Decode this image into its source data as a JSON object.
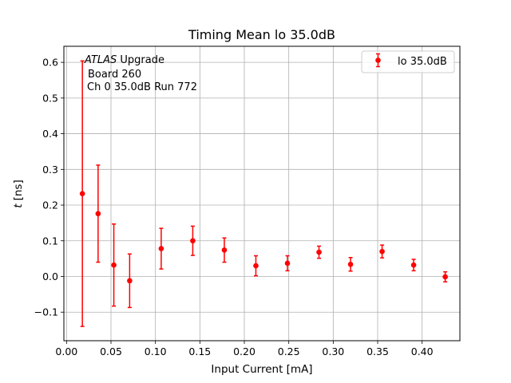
{
  "chart_data": {
    "type": "scatter",
    "title": "Timing Mean lo 35.0dB",
    "xlabel": "Input Current [mA]",
    "ylabel_italic": "t",
    "ylabel_unit": "[ns]",
    "xlim": [
      -0.003,
      0.4425
    ],
    "ylim": [
      -0.18,
      0.645
    ],
    "xticks": [
      0.0,
      0.05,
      0.1,
      0.15,
      0.2,
      0.25,
      0.3,
      0.35,
      0.4
    ],
    "xtick_labels": [
      "0.00",
      "0.05",
      "0.10",
      "0.15",
      "0.20",
      "0.25",
      "0.30",
      "0.35",
      "0.40"
    ],
    "yticks": [
      -0.1,
      0.0,
      0.1,
      0.2,
      0.3,
      0.4,
      0.5,
      0.6
    ],
    "ytick_labels": [
      "−0.1",
      "0.0",
      "0.1",
      "0.2",
      "0.3",
      "0.4",
      "0.5",
      "0.6"
    ],
    "grid": true,
    "legend_position": "top-right",
    "annotation": {
      "line1_italic": "ATLAS",
      "line1_rest": " Upgrade",
      "line2": "Board 260",
      "line3": "Ch 0 35.0dB  Run 772"
    },
    "series": [
      {
        "name": "lo 35.0dB",
        "color": "#ff0000",
        "x": [
          0.0178,
          0.0355,
          0.0532,
          0.071,
          0.1065,
          0.142,
          0.1775,
          0.213,
          0.2485,
          0.284,
          0.3195,
          0.355,
          0.3905,
          0.426
        ],
        "y": [
          0.232,
          0.176,
          0.032,
          -0.012,
          0.078,
          0.1,
          0.074,
          0.03,
          0.037,
          0.068,
          0.034,
          0.07,
          0.032,
          -0.001
        ],
        "yerr": [
          0.372,
          0.136,
          0.115,
          0.075,
          0.057,
          0.041,
          0.034,
          0.028,
          0.021,
          0.017,
          0.019,
          0.018,
          0.016,
          0.014
        ]
      }
    ]
  }
}
